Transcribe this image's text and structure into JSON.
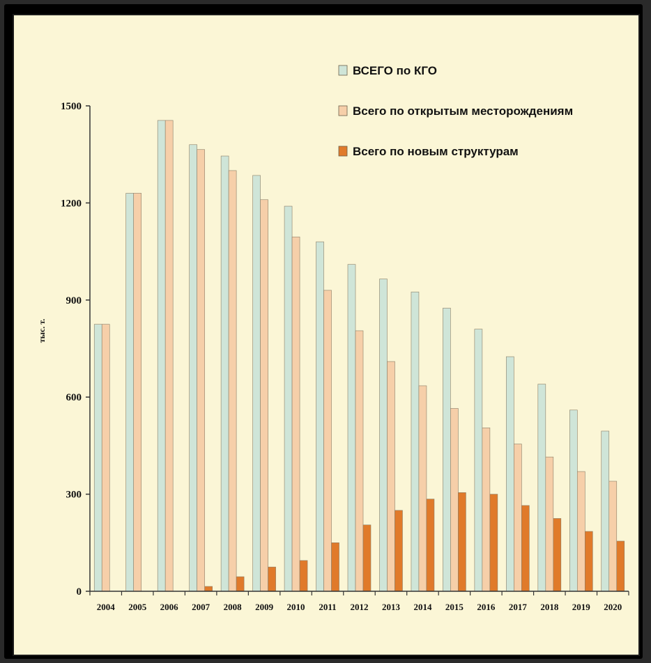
{
  "chart_data": {
    "type": "bar",
    "title": "",
    "xlabel": "",
    "ylabel": "тыс. т.",
    "ylim": [
      0,
      1500
    ],
    "yticks": [
      "0",
      "300",
      "600",
      "900",
      "1200",
      "1500"
    ],
    "grid": false,
    "legend_position": "top-right",
    "background_color": "#fbf6d6",
    "categories": [
      "2004",
      "2005",
      "2006",
      "2007",
      "2008",
      "2009",
      "2010",
      "2011",
      "2012",
      "2013",
      "2014",
      "2015",
      "2016",
      "2017",
      "2018",
      "2019",
      "2020"
    ],
    "series": [
      {
        "name": "ВСЕГО по КГО",
        "color": "#cfe5d8",
        "values": [
          825,
          1230,
          1455,
          1380,
          1345,
          1285,
          1190,
          1080,
          1010,
          965,
          925,
          875,
          810,
          725,
          640,
          560,
          495
        ]
      },
      {
        "name": "Всего по открытым месторождениям",
        "color": "#f6cfa9",
        "values": [
          825,
          1230,
          1455,
          1365,
          1300,
          1210,
          1095,
          930,
          805,
          710,
          635,
          565,
          505,
          455,
          415,
          370,
          340
        ]
      },
      {
        "name": "Всего по новым структурам",
        "color": "#e07a2a",
        "values": [
          0,
          0,
          0,
          15,
          45,
          75,
          95,
          150,
          205,
          250,
          285,
          305,
          300,
          265,
          225,
          185,
          155
        ]
      }
    ]
  }
}
